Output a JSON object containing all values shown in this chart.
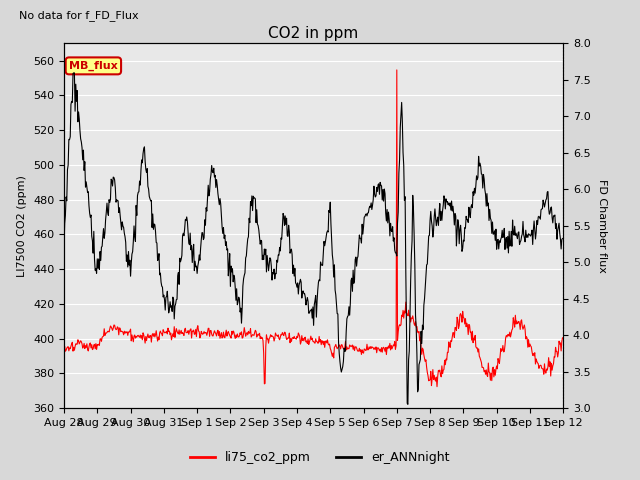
{
  "title": "CO2 in ppm",
  "top_left_text": "No data for f_FD_Flux",
  "ylabel_left": "LI7500 CO2 (ppm)",
  "ylabel_right": "FD Chamber flux",
  "ylim_left": [
    360,
    570
  ],
  "ylim_right": [
    3.0,
    8.0
  ],
  "yticks_left": [
    360,
    380,
    400,
    420,
    440,
    460,
    480,
    500,
    520,
    540,
    560
  ],
  "yticks_right": [
    3.0,
    3.5,
    4.0,
    4.5,
    5.0,
    5.5,
    6.0,
    6.5,
    7.0,
    7.5,
    8.0
  ],
  "xtick_labels": [
    "Aug 28",
    "Aug 29",
    "Aug 30",
    "Aug 31",
    "Sep 1",
    "Sep 2",
    "Sep 3",
    "Sep 4",
    "Sep 5",
    "Sep 6",
    "Sep 7",
    "Sep 8",
    "Sep 9",
    "Sep 10",
    "Sep 11",
    "Sep 12"
  ],
  "legend_entries": [
    "li75_co2_ppm",
    "er_ANNnight"
  ],
  "legend_colors": [
    "#ff0000",
    "#000000"
  ],
  "fig_facecolor": "#d8d8d8",
  "plot_bg_color": "#e8e8e8",
  "annotation_box": {
    "text": "MB_flux",
    "facecolor": "#ffff88",
    "edgecolor": "#cc0000"
  },
  "line_red_color": "#ff0000",
  "line_black_color": "#000000",
  "grid_color": "#ffffff"
}
